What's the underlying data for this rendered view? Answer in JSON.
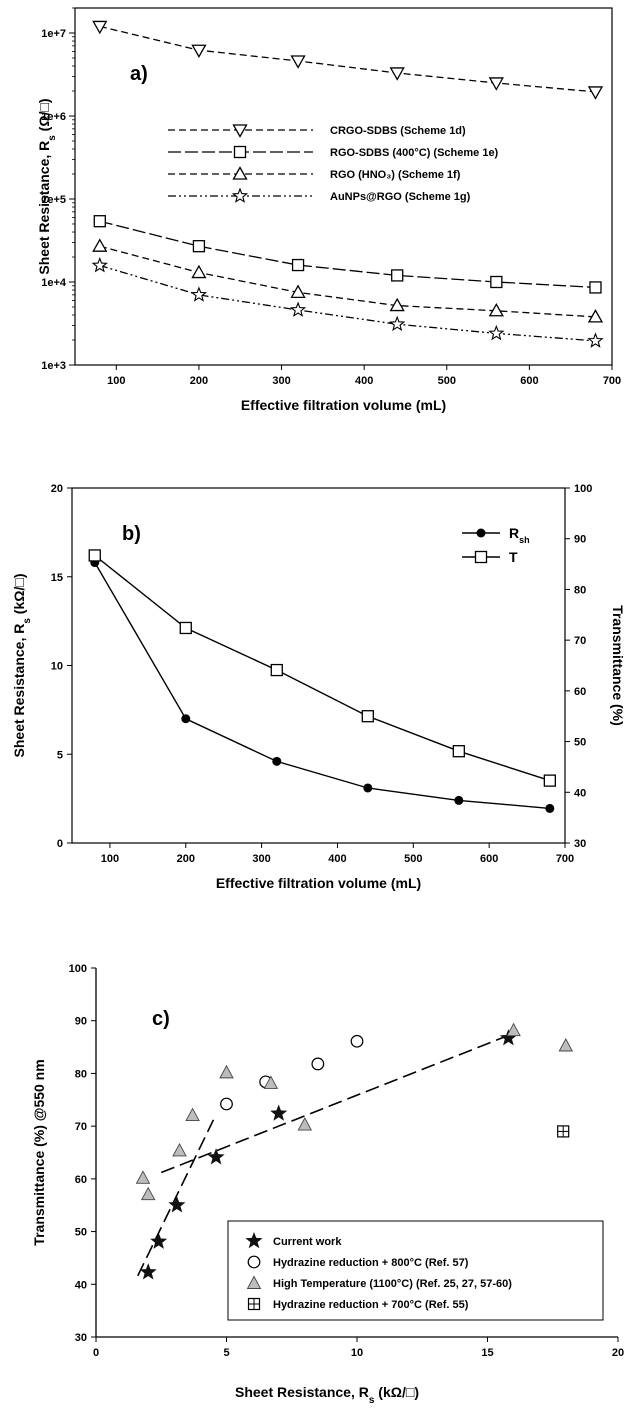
{
  "chart_data": [
    {
      "type": "line",
      "panel_label": "a)",
      "xlabel": "Effective filtration volume (mL)",
      "ylabel": "Sheet Resistance, R",
      "ylabel_sub": "s",
      "ylabel_unit": " (Ω/□)",
      "xlim": [
        50,
        700
      ],
      "x_ticks": [
        100,
        200,
        300,
        400,
        500,
        600,
        700
      ],
      "y_scale": "log",
      "ylim": [
        1000,
        20000000
      ],
      "y_tick_values": [
        1000,
        10000,
        100000,
        1000000,
        10000000
      ],
      "y_tick_labels": [
        "1e+3",
        "1e+4",
        "1e+5",
        "1e+6",
        "1e+7"
      ],
      "legend_position": "middle",
      "x": [
        80,
        200,
        320,
        440,
        560,
        680
      ],
      "series": [
        {
          "name": "CRGO-SDBS (Scheme 1d)",
          "marker": "triangle-down",
          "dash": "7,4",
          "values": [
            12000000,
            6200000,
            4600000,
            3300000,
            2500000,
            1950000
          ]
        },
        {
          "name": "RGO-SDBS (400°C) (Scheme 1e)",
          "marker": "square",
          "dash": "13,4",
          "values": [
            54000,
            27000,
            16000,
            12000,
            10000,
            8600
          ]
        },
        {
          "name": "RGO (HNO₃) (Scheme 1f)",
          "marker": "triangle-up",
          "dash": "7,4",
          "values": [
            27000,
            13000,
            7500,
            5200,
            4500,
            3800
          ]
        },
        {
          "name": "AuNPs@RGO (Scheme 1g)",
          "marker": "star",
          "dash": "8,3,2,3,2,3",
          "values": [
            15800,
            7000,
            4600,
            3100,
            2400,
            1950
          ]
        }
      ]
    },
    {
      "type": "line",
      "panel_label": "b)",
      "xlabel": "Effective filtration volume (mL)",
      "ylabel": "Sheet Resistance, R",
      "ylabel_sub": "s",
      "ylabel_unit": " (kΩ/□)",
      "y2label": "Transmittance (%)",
      "xlim": [
        50,
        700
      ],
      "x_ticks": [
        100,
        200,
        300,
        400,
        500,
        600,
        700
      ],
      "ylim": [
        0,
        20
      ],
      "y_ticks": [
        0,
        5,
        10,
        15,
        20
      ],
      "y2lim": [
        30,
        100
      ],
      "y2_ticks": [
        30,
        40,
        50,
        60,
        70,
        80,
        90,
        100
      ],
      "legend_position": "top-right",
      "x": [
        80,
        200,
        320,
        440,
        560,
        680
      ],
      "series": [
        {
          "name": "R",
          "name_sub": "sh",
          "axis": "left",
          "marker": "filled-circle",
          "values": [
            15.8,
            7.0,
            4.6,
            3.1,
            2.4,
            1.95
          ]
        },
        {
          "name": "T",
          "axis": "right",
          "marker": "square",
          "values": [
            86.7,
            72.4,
            64.1,
            55.0,
            48.1,
            42.3
          ]
        }
      ]
    },
    {
      "type": "scatter",
      "panel_label": "c)",
      "xlabel": "Sheet Resistance, R",
      "xlabel_sub": "s",
      "xlabel_unit": " (kΩ/□)",
      "ylabel": "Transmittance (%) @550 nm",
      "xlim": [
        0,
        20
      ],
      "x_ticks": [
        0,
        5,
        10,
        15,
        20
      ],
      "ylim": [
        30,
        100
      ],
      "y_ticks": [
        30,
        40,
        50,
        60,
        70,
        80,
        90,
        100
      ],
      "legend_position": "bottom-right",
      "series": [
        {
          "name": "Current work",
          "marker": "star",
          "points": [
            [
              2.0,
              42.3
            ],
            [
              2.4,
              48.1
            ],
            [
              3.1,
              55.0
            ],
            [
              4.6,
              64.1
            ],
            [
              7.0,
              72.4
            ],
            [
              15.8,
              86.7
            ]
          ]
        },
        {
          "name": "Hydrazine reduction + 800°C (Ref. 57)",
          "marker": "circle",
          "points": [
            [
              5.0,
              74.2
            ],
            [
              6.5,
              78.4
            ],
            [
              8.5,
              81.8
            ],
            [
              10.0,
              86.1
            ]
          ]
        },
        {
          "name": "High Temperature (1100°C) (Ref. 25, 27, 57-60)",
          "marker": "triangle-up",
          "points": [
            [
              1.8,
              60.2
            ],
            [
              2.0,
              57.1
            ],
            [
              3.2,
              65.4
            ],
            [
              3.7,
              72.1
            ],
            [
              5.0,
              80.2
            ],
            [
              6.7,
              78.2
            ],
            [
              8.0,
              70.3
            ],
            [
              16.0,
              88.2
            ],
            [
              18.0,
              85.3
            ]
          ]
        },
        {
          "name": "Hydrazine reduction + 700°C (Ref. 55)",
          "marker": "square-plus",
          "points": [
            [
              17.9,
              69.0
            ]
          ]
        }
      ],
      "trend_lines": [
        {
          "style": "dashed",
          "points": [
            [
              1.6,
              41.6
            ],
            [
              4.5,
              71.2
            ]
          ]
        },
        {
          "style": "dashed",
          "points": [
            [
              2.5,
              61.2
            ],
            [
              16.1,
              87.8
            ]
          ]
        }
      ]
    }
  ]
}
